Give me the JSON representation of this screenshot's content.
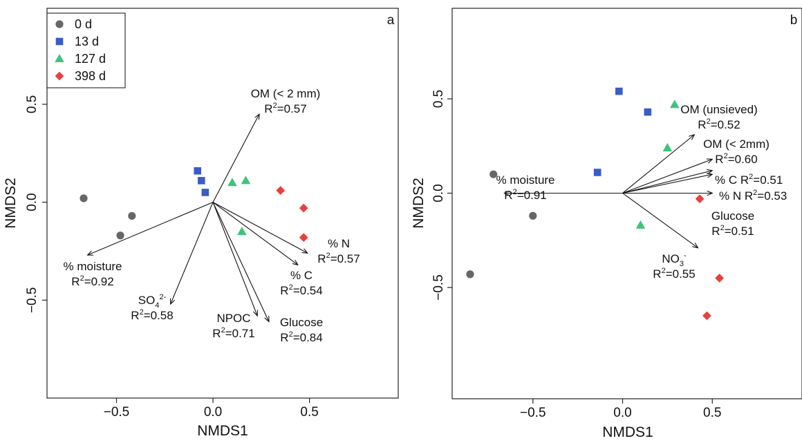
{
  "chart_data": [
    {
      "type": "scatter",
      "panel_label": "a",
      "xlabel": "NMDS1",
      "ylabel": "NMDS2",
      "xlim": [
        -0.86,
        0.96
      ],
      "ylim": [
        -1.0,
        0.99
      ],
      "xticks": [
        -0.5,
        0.0,
        0.5
      ],
      "xtick_labels": [
        "−0.5",
        "0.0",
        "0.5"
      ],
      "yticks": [
        -0.5,
        0.0,
        0.5
      ],
      "ytick_labels": [
        "−0.5",
        "0.0",
        "0.5"
      ],
      "grid": false,
      "legend_position": "top-left",
      "series": [
        {
          "name": "0 d",
          "marker": "circle",
          "color": "#666666",
          "points": [
            [
              -0.67,
              0.02
            ],
            [
              -0.48,
              -0.17
            ],
            [
              -0.42,
              -0.07
            ]
          ]
        },
        {
          "name": "13 d",
          "marker": "square",
          "color": "#3a5cc6",
          "points": [
            [
              -0.08,
              0.16
            ],
            [
              -0.06,
              0.11
            ],
            [
              -0.04,
              0.05
            ]
          ]
        },
        {
          "name": "127 d",
          "marker": "triangle",
          "color": "#3ec47a",
          "points": [
            [
              0.1,
              0.1
            ],
            [
              0.17,
              0.11
            ],
            [
              0.15,
              -0.15
            ]
          ]
        },
        {
          "name": "398 d",
          "marker": "diamond",
          "color": "#e84040",
          "points": [
            [
              0.35,
              0.06
            ],
            [
              0.47,
              -0.03
            ],
            [
              0.47,
              -0.18
            ]
          ]
        }
      ],
      "vectors": [
        {
          "name": "OM (< 2 mm)",
          "r2": "0.57",
          "x": 0.24,
          "y": 0.45
        },
        {
          "name": "% moisture",
          "r2": "0.92",
          "x": -0.65,
          "y": -0.27
        },
        {
          "name": "SO4 2-",
          "base": "SO",
          "sub": "4",
          "sup": "2-",
          "r2": "0.58",
          "x": -0.22,
          "y": -0.52
        },
        {
          "name": "NPOC",
          "r2": "0.71",
          "x": 0.23,
          "y": -0.58
        },
        {
          "name": "Glucose",
          "r2": "0.84",
          "x": 0.29,
          "y": -0.61
        },
        {
          "name": "% C",
          "r2": "0.54",
          "x": 0.44,
          "y": -0.32
        },
        {
          "name": "% N",
          "r2": "0.57",
          "x": 0.49,
          "y": -0.26
        }
      ]
    },
    {
      "type": "scatter",
      "panel_label": "b",
      "xlabel": "NMDS1",
      "ylabel": "NMDS2",
      "xlim": [
        -0.95,
        1.0
      ],
      "ylim": [
        -1.09,
        0.98
      ],
      "xticks": [
        -0.5,
        0.0,
        0.5
      ],
      "xtick_labels": [
        "−0.5",
        "0.0",
        "0.5"
      ],
      "yticks": [
        -0.5,
        0.0,
        0.5
      ],
      "ytick_labels": [
        "−0.5",
        "0.0",
        "0.5"
      ],
      "grid": false,
      "series": [
        {
          "name": "0 d",
          "marker": "circle",
          "color": "#666666",
          "points": [
            [
              -0.72,
              0.1
            ],
            [
              -0.5,
              -0.12
            ],
            [
              -0.85,
              -0.43
            ]
          ]
        },
        {
          "name": "13 d",
          "marker": "square",
          "color": "#3a5cc6",
          "points": [
            [
              -0.02,
              0.54
            ],
            [
              0.14,
              0.43
            ],
            [
              -0.14,
              0.11
            ]
          ]
        },
        {
          "name": "127 d",
          "marker": "triangle",
          "color": "#3ec47a",
          "points": [
            [
              0.29,
              0.47
            ],
            [
              0.25,
              0.24
            ],
            [
              0.1,
              -0.17
            ]
          ]
        },
        {
          "name": "398 d",
          "marker": "diamond",
          "color": "#e84040",
          "points": [
            [
              0.43,
              -0.03
            ],
            [
              0.54,
              -0.45
            ],
            [
              0.47,
              -0.65
            ]
          ]
        }
      ],
      "vectors": [
        {
          "name": "OM (unsieved)",
          "r2": "0.52",
          "x": 0.4,
          "y": 0.31
        },
        {
          "name": "OM (< 2mm)",
          "r2": "0.60",
          "x": 0.5,
          "y": 0.18
        },
        {
          "name": "% C",
          "r2": "0.51",
          "x": 0.5,
          "y": 0.12
        },
        {
          "name": "% N",
          "r2": "0.53",
          "x": 0.5,
          "y": 0.1
        },
        {
          "name": "Glucose",
          "r2": "0.51",
          "x": 0.5,
          "y": 0.0
        },
        {
          "name": "% moisture",
          "r2": "0.91",
          "x": -0.66,
          "y": 0.0
        },
        {
          "name": "NO3 -",
          "base": "NO",
          "sub": "3",
          "sup": "-",
          "r2": "0.55",
          "x": 0.42,
          "y": -0.29
        }
      ]
    }
  ]
}
